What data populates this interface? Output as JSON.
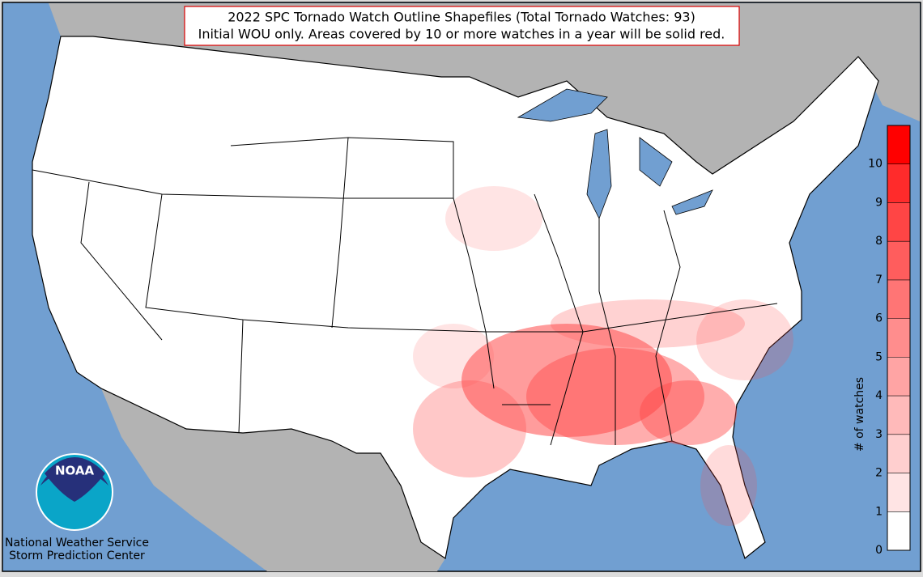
{
  "title": [
    "2022 SPC Tornado Watch Outline Shapefiles (Total Tornado Watches: 93)",
    "Initial WOU only. Areas covered by 10 or more watches in a year will be solid red."
  ],
  "colorbar": {
    "label": "# of watches",
    "lim": [
      0,
      11
    ],
    "ticks": [
      0,
      1,
      2,
      3,
      4,
      5,
      6,
      7,
      8,
      9,
      10
    ],
    "colors": [
      "#ffffff",
      "#ffe4e4",
      "#ffcfcf",
      "#ffbaba",
      "#ffa4a4",
      "#ff8d8d",
      "#ff7575",
      "#ff5d5d",
      "#ff4545",
      "#ff2b2b",
      "#ff0000"
    ]
  },
  "logo": "NOAA",
  "footer": [
    "National Weather Service",
    "Storm Prediction Center"
  ]
}
